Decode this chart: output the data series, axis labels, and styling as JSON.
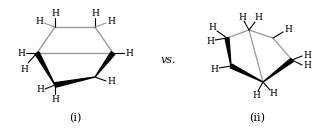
{
  "title_i": "(i)",
  "title_ii": "(ii)",
  "vs_text": "vs.",
  "bg_color": "#ffffff",
  "line_color": "#000000",
  "gray_color": "#999999",
  "font_size_label": 6.5,
  "font_size_title": 8,
  "fig_width": 3.28,
  "fig_height": 1.38,
  "dpi": 100
}
